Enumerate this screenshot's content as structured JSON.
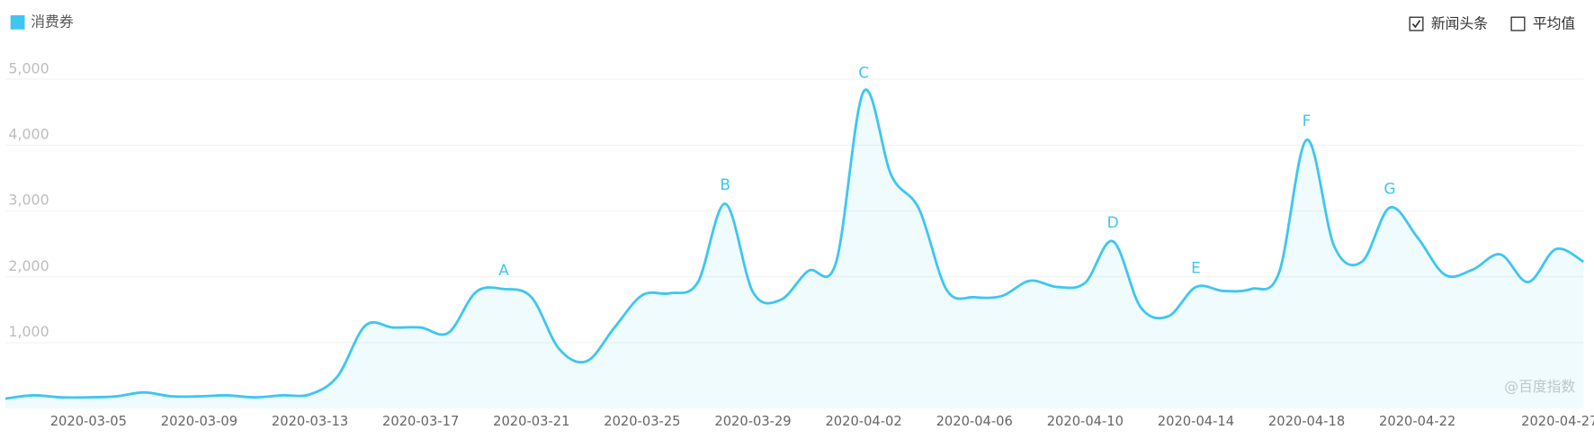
{
  "chart_data": {
    "type": "line",
    "categories": [
      null,
      null,
      null,
      "2020-03-05",
      null,
      null,
      null,
      "2020-03-09",
      null,
      null,
      null,
      "2020-03-13",
      null,
      null,
      null,
      "2020-03-17",
      null,
      null,
      null,
      "2020-03-21",
      null,
      null,
      null,
      "2020-03-25",
      null,
      null,
      null,
      "2020-03-29",
      null,
      null,
      null,
      "2020-04-02",
      null,
      null,
      null,
      "2020-04-06",
      null,
      null,
      null,
      "2020-04-10",
      null,
      null,
      null,
      "2020-04-14",
      null,
      null,
      null,
      "2020-04-18",
      null,
      null,
      null,
      "2020-04-22",
      null,
      null,
      null,
      null,
      "2020-04-27",
      null
    ],
    "series": [
      {
        "name": "消费券",
        "color": "#3ec6f0",
        "values": [
          150,
          200,
          170,
          170,
          185,
          245,
          185,
          185,
          200,
          170,
          200,
          215,
          490,
          1260,
          1230,
          1230,
          1150,
          1770,
          1815,
          1690,
          905,
          720,
          1230,
          1720,
          1750,
          1910,
          3110,
          1770,
          1650,
          2090,
          2215,
          4815,
          3540,
          3030,
          1800,
          1690,
          1710,
          1940,
          1845,
          1910,
          2540,
          1540,
          1400,
          1845,
          1785,
          1815,
          2060,
          4080,
          2460,
          2230,
          3050,
          2600,
          2030,
          2110,
          2340,
          1920,
          2420,
          2230
        ],
        "point_labels": [
          null,
          null,
          null,
          null,
          null,
          null,
          null,
          null,
          null,
          null,
          null,
          null,
          null,
          null,
          null,
          null,
          null,
          null,
          "A",
          null,
          null,
          null,
          null,
          null,
          null,
          null,
          "B",
          null,
          null,
          null,
          null,
          "C",
          null,
          null,
          null,
          null,
          null,
          null,
          null,
          null,
          "D",
          null,
          null,
          "E",
          null,
          null,
          null,
          "F",
          null,
          null,
          "G",
          null,
          null,
          null,
          null,
          null,
          null,
          null
        ]
      }
    ],
    "ylim": [
      0,
      5000
    ],
    "yticks": [
      {
        "value": 1000,
        "label": "1,000"
      },
      {
        "value": 2000,
        "label": "2,000"
      },
      {
        "value": 3000,
        "label": "3,000"
      },
      {
        "value": 4000,
        "label": "4,000"
      },
      {
        "value": 5000,
        "label": "5,000"
      }
    ],
    "grid": true,
    "toggles": [
      {
        "label": "新闻头条",
        "checked": true
      },
      {
        "label": "平均值",
        "checked": false
      }
    ],
    "watermark": "@百度指数"
  }
}
